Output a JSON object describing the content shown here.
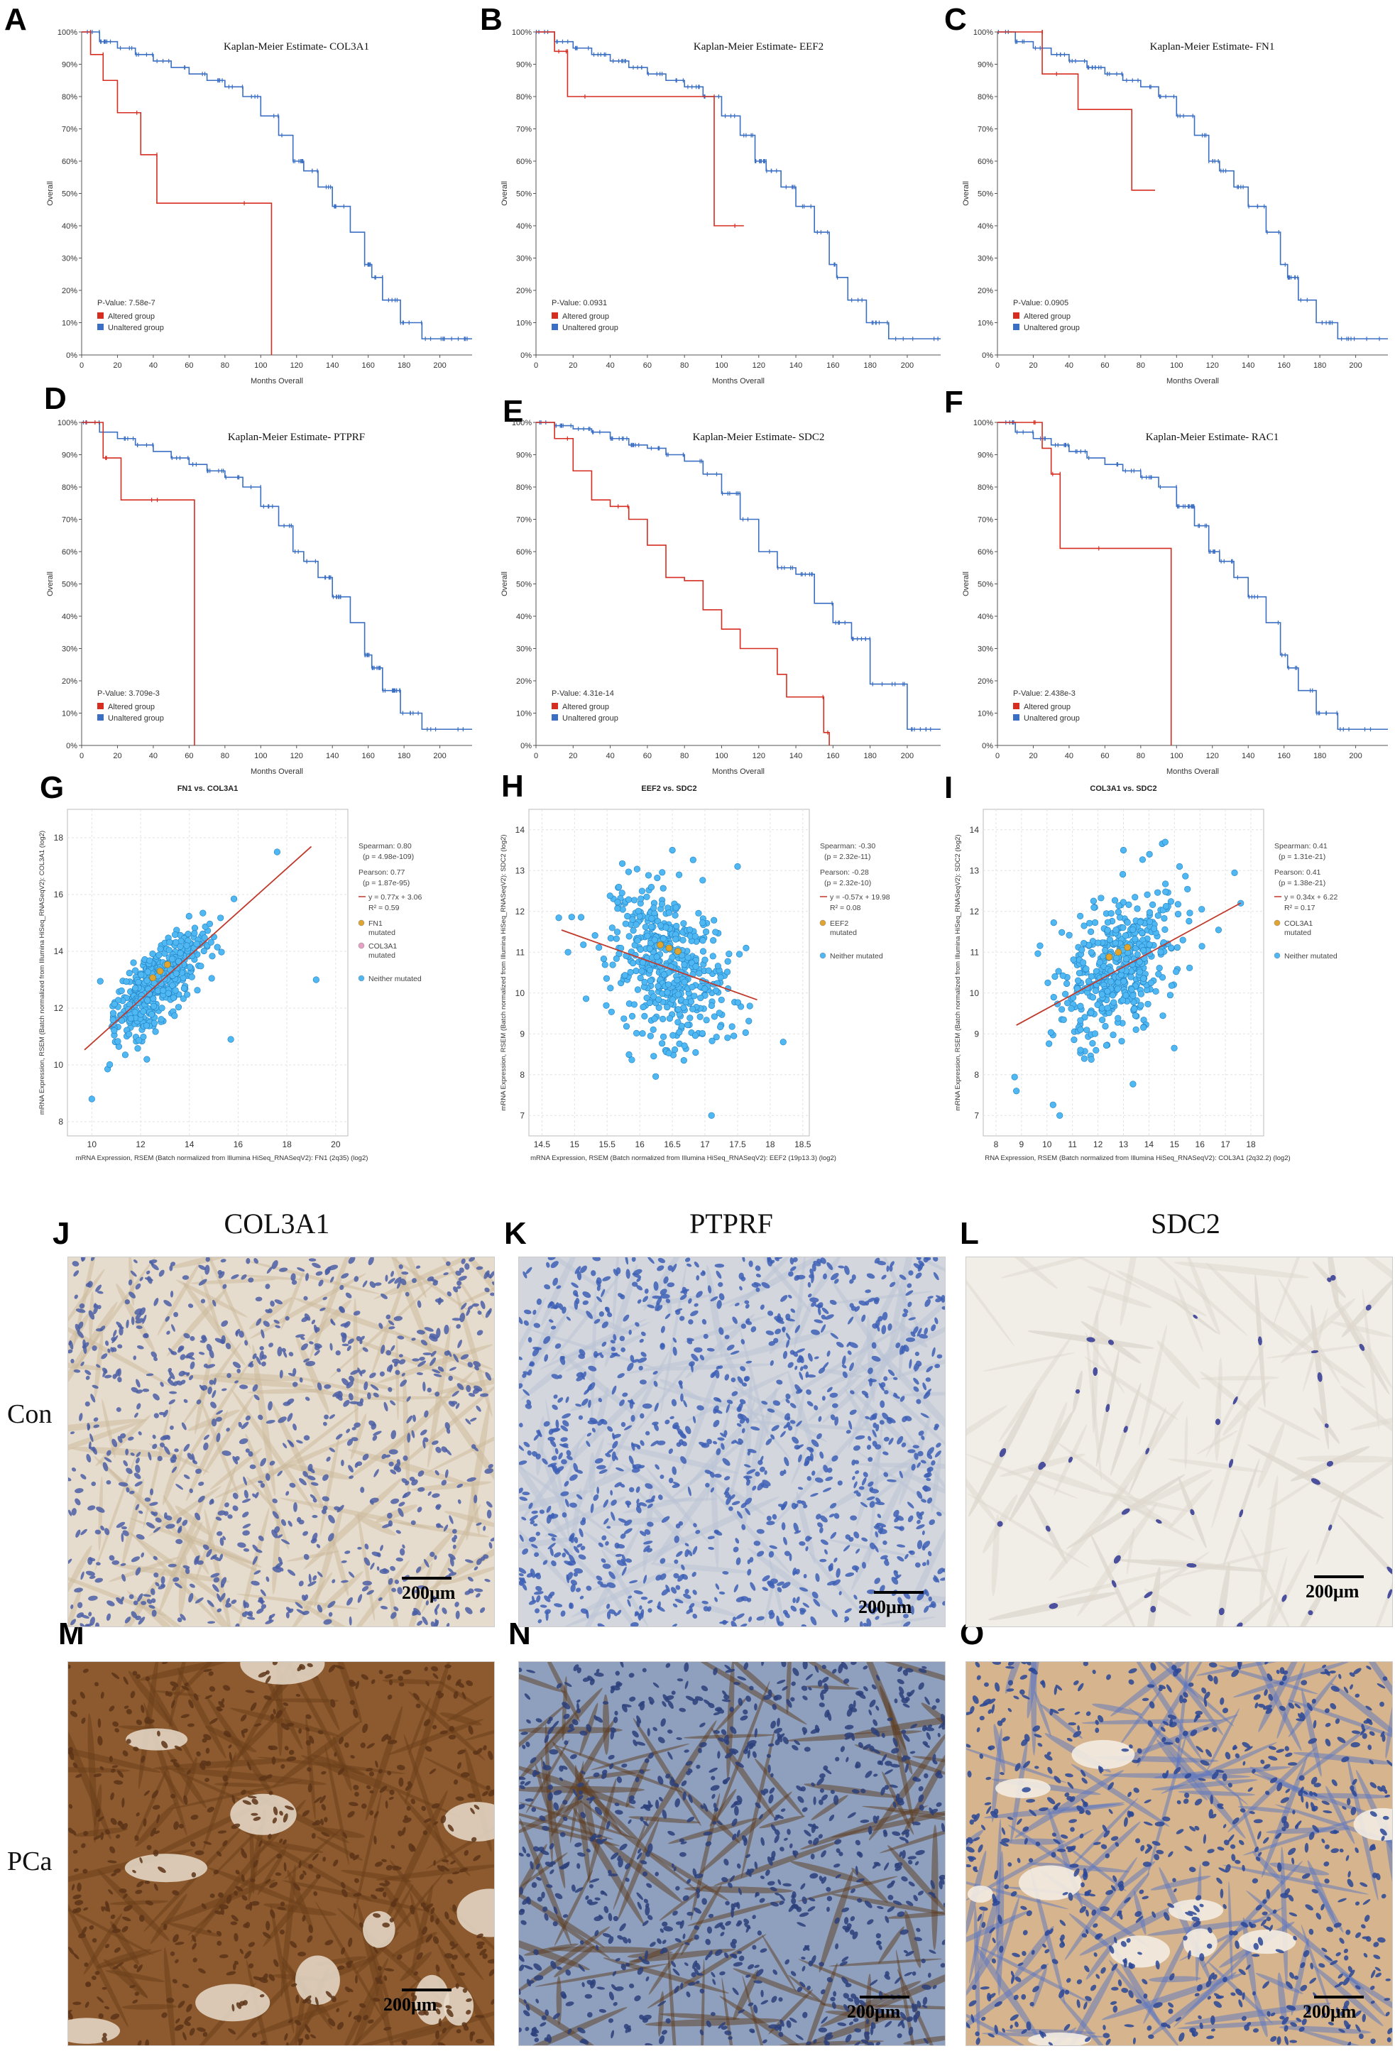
{
  "panel_labels": [
    "A",
    "B",
    "C",
    "D",
    "E",
    "F",
    "G",
    "H",
    "I",
    "J",
    "K",
    "L",
    "M",
    "N",
    "O"
  ],
  "km_common": {
    "ylabel": "Overall",
    "xlabel": "Months Overall",
    "y_ticks": [
      "0%",
      "10%",
      "20%",
      "30%",
      "40%",
      "50%",
      "60%",
      "70%",
      "80%",
      "90%",
      "100%"
    ],
    "x_ticks_a": [
      "0",
      "20",
      "40",
      "60",
      "80",
      "100",
      "120",
      "140",
      "160",
      "180",
      "200"
    ],
    "x_ticks_b": [
      "0",
      "20",
      "40",
      "60",
      "80",
      "100",
      "120",
      "140",
      "160",
      "180",
      "200"
    ],
    "legend_altered": "Altered group",
    "legend_unaltered": "Unaltered group",
    "color_altered": "#d62d20",
    "color_unaltered": "#3a6fc4"
  },
  "chart_data": [
    {
      "type": "line",
      "panel": "A",
      "title": "Kaplan-Meier Estimate- COL3A1",
      "pvalue": "P-Value: 7.58e-7",
      "xlim": [
        0,
        218
      ],
      "ylim": [
        0,
        100
      ],
      "series": [
        {
          "name": "Altered group",
          "x": [
            0,
            5,
            5,
            12,
            12,
            20,
            20,
            33,
            33,
            42,
            42,
            106,
            106
          ],
          "values": [
            100,
            100,
            93,
            93,
            85,
            85,
            75,
            75,
            62,
            62,
            47,
            47,
            0
          ]
        },
        {
          "name": "Unaltered group",
          "x": [
            0,
            10,
            20,
            30,
            40,
            50,
            60,
            70,
            80,
            90,
            100,
            110,
            118,
            124,
            132,
            140,
            150,
            158,
            162,
            168,
            178,
            190,
            200,
            218
          ],
          "values": [
            100,
            97,
            95,
            93,
            91,
            89,
            87,
            85,
            83,
            80,
            74,
            68,
            60,
            57,
            52,
            46,
            38,
            28,
            24,
            17,
            10,
            5,
            5,
            5
          ]
        }
      ]
    },
    {
      "type": "line",
      "panel": "B",
      "title": "Kaplan-Meier Estimate- EEF2",
      "pvalue": "P-Value: 0.0931",
      "xlim": [
        0,
        218
      ],
      "ylim": [
        0,
        100
      ],
      "series": [
        {
          "name": "Altered group",
          "x": [
            0,
            10,
            10,
            17,
            17,
            96,
            96,
            112
          ],
          "values": [
            100,
            100,
            94,
            94,
            80,
            80,
            40,
            40
          ]
        },
        {
          "name": "Unaltered group",
          "x": [
            0,
            10,
            20,
            30,
            40,
            50,
            60,
            70,
            80,
            90,
            100,
            110,
            118,
            124,
            132,
            140,
            150,
            158,
            162,
            168,
            178,
            190,
            200,
            218
          ],
          "values": [
            100,
            97,
            95,
            93,
            91,
            89,
            87,
            85,
            83,
            80,
            74,
            68,
            60,
            57,
            52,
            46,
            38,
            28,
            24,
            17,
            10,
            5,
            5,
            5
          ]
        }
      ]
    },
    {
      "type": "line",
      "panel": "C",
      "title": "Kaplan-Meier Estimate- FN1",
      "pvalue": "P-Value: 0.0905",
      "xlim": [
        0,
        218
      ],
      "ylim": [
        0,
        100
      ],
      "series": [
        {
          "name": "Altered group",
          "x": [
            0,
            25,
            25,
            45,
            45,
            75,
            75,
            88
          ],
          "values": [
            100,
            100,
            87,
            87,
            76,
            76,
            51,
            51
          ]
        },
        {
          "name": "Unaltered group",
          "x": [
            0,
            10,
            20,
            30,
            40,
            50,
            60,
            70,
            80,
            90,
            100,
            110,
            118,
            124,
            132,
            140,
            150,
            158,
            162,
            168,
            178,
            190,
            200,
            218
          ],
          "values": [
            100,
            97,
            95,
            93,
            91,
            89,
            87,
            85,
            83,
            80,
            74,
            68,
            60,
            57,
            52,
            46,
            38,
            28,
            24,
            17,
            10,
            5,
            5,
            5
          ]
        }
      ]
    },
    {
      "type": "line",
      "panel": "D",
      "title": "Kaplan-Meier Estimate- PTPRF",
      "pvalue": "P-Value: 3.709e-3",
      "xlim": [
        0,
        218
      ],
      "ylim": [
        0,
        100
      ],
      "series": [
        {
          "name": "Altered group",
          "x": [
            0,
            12,
            12,
            22,
            22,
            63,
            63
          ],
          "values": [
            100,
            100,
            89,
            89,
            76,
            76,
            0
          ]
        },
        {
          "name": "Unaltered group",
          "x": [
            0,
            10,
            20,
            30,
            40,
            50,
            60,
            70,
            80,
            90,
            100,
            110,
            118,
            124,
            132,
            140,
            150,
            158,
            162,
            168,
            178,
            190,
            200,
            218
          ],
          "values": [
            100,
            97,
            95,
            93,
            91,
            89,
            87,
            85,
            83,
            80,
            74,
            68,
            60,
            57,
            52,
            46,
            38,
            28,
            24,
            17,
            10,
            5,
            5,
            5
          ]
        }
      ]
    },
    {
      "type": "line",
      "panel": "E",
      "title": "Kaplan-Meier Estimate- SDC2",
      "pvalue": "P-Value: 4.31e-14",
      "xlim": [
        0,
        218
      ],
      "ylim": [
        0,
        100
      ],
      "series": [
        {
          "name": "Altered group",
          "x": [
            0,
            10,
            20,
            30,
            40,
            50,
            60,
            70,
            80,
            90,
            100,
            110,
            120,
            130,
            135,
            145,
            155,
            158,
            158
          ],
          "values": [
            100,
            95,
            85,
            76,
            74,
            70,
            62,
            52,
            51,
            42,
            36,
            30,
            30,
            22,
            15,
            15,
            4,
            0,
            0
          ]
        },
        {
          "name": "Unaltered group",
          "x": [
            0,
            10,
            20,
            30,
            40,
            50,
            60,
            70,
            80,
            90,
            100,
            110,
            120,
            130,
            140,
            150,
            160,
            170,
            180,
            200,
            218
          ],
          "values": [
            100,
            99,
            98,
            97,
            95,
            93,
            92,
            90,
            88,
            84,
            78,
            70,
            60,
            55,
            53,
            44,
            38,
            33,
            19,
            5,
            5
          ]
        }
      ]
    },
    {
      "type": "line",
      "panel": "F",
      "title": "Kaplan-Meier Estimate- RAC1",
      "pvalue": "P-Value: 2.438e-3",
      "xlim": [
        0,
        218
      ],
      "ylim": [
        0,
        100
      ],
      "series": [
        {
          "name": "Altered group",
          "x": [
            0,
            25,
            25,
            30,
            30,
            35,
            35,
            97,
            97
          ],
          "values": [
            100,
            100,
            92,
            92,
            84,
            84,
            61,
            61,
            0
          ]
        },
        {
          "name": "Unaltered group",
          "x": [
            0,
            10,
            20,
            30,
            40,
            50,
            60,
            70,
            80,
            90,
            100,
            110,
            118,
            124,
            132,
            140,
            150,
            158,
            162,
            168,
            178,
            190,
            200,
            218
          ],
          "values": [
            100,
            97,
            95,
            93,
            91,
            89,
            87,
            85,
            83,
            80,
            74,
            68,
            60,
            57,
            52,
            46,
            38,
            28,
            24,
            17,
            10,
            5,
            5,
            5
          ]
        }
      ]
    },
    {
      "type": "scatter",
      "panel": "G",
      "title": "FN1 vs. COL3A1",
      "xlabel": "mRNA Expression, RSEM (Batch normalized from Illumina HiSeq_RNASeqV2): FN1 (2q35) (log2)",
      "ylabel": "mRNA Expression, RSEM (Batch normalized from Illumina HiSeq_RNASeqV2): COL3A1 (log2)",
      "xlim": [
        9,
        20.5
      ],
      "ylim": [
        7.5,
        19
      ],
      "x_ticks": [
        "10",
        "12",
        "14",
        "16",
        "18",
        "20"
      ],
      "y_ticks": [
        "8",
        "10",
        "12",
        "14",
        "16",
        "18"
      ],
      "regression": {
        "slope": 0.77,
        "intercept": 3.06,
        "x_range": [
          9.7,
          19
        ]
      },
      "center": [
        12.8,
        12.9
      ],
      "spread": [
        1.0,
        1.0
      ],
      "corr": 0.77,
      "outliers": [
        [
          17.6,
          17.5
        ],
        [
          19.2,
          13.0
        ],
        [
          15.7,
          10.9
        ],
        [
          10.0,
          8.8
        ]
      ],
      "stats": {
        "spearman": "Spearman: 0.80",
        "spearman_p": "(p = 4.98e-109)",
        "pearson": "Pearson: 0.77",
        "pearson_p": "(p = 1.87e-95)",
        "fit": "y = 0.77x + 3.06",
        "r2": "R² = 0.59"
      },
      "legend": [
        "FN1 mutated",
        "COL3A1 mutated",
        "Neither mutated"
      ]
    },
    {
      "type": "scatter",
      "panel": "H",
      "title": "EEF2 vs. SDC2",
      "xlabel": "mRNA Expression, RSEM (Batch normalized from Illumina HiSeq_RNASeqV2): EEF2 (19p13.3) (log2)",
      "ylabel": "mRNA Expression, RSEM (Batch normalized from Illumina HiSeq_RNASeqV2): SDC2 (log2)",
      "xlim": [
        14.3,
        18.6
      ],
      "ylim": [
        6.5,
        14.5
      ],
      "x_ticks": [
        "14.5",
        "15",
        "15.5",
        "16",
        "16.5",
        "17",
        "17.5",
        "18",
        "18.5"
      ],
      "y_ticks": [
        "7",
        "8",
        "9",
        "10",
        "11",
        "12",
        "13",
        "14"
      ],
      "regression": {
        "slope": -0.57,
        "intercept": 19.98,
        "x_range": [
          14.8,
          17.8
        ]
      },
      "center": [
        16.45,
        10.7
      ],
      "spread": [
        0.45,
        0.95
      ],
      "corr": -0.28,
      "outliers": [
        [
          17.1,
          7.0
        ],
        [
          16.5,
          13.5
        ],
        [
          17.5,
          13.1
        ],
        [
          14.9,
          11.0
        ],
        [
          18.2,
          8.8
        ]
      ],
      "stats": {
        "spearman": "Spearman: -0.30",
        "spearman_p": "(p = 2.32e-11)",
        "pearson": "Pearson: -0.28",
        "pearson_p": "(p = 2.32e-10)",
        "fit": "y = -0.57x + 19.98",
        "r2": "R² = 0.08"
      },
      "legend": [
        "EEF2 mutated",
        "Neither mutated"
      ]
    },
    {
      "type": "scatter",
      "panel": "I",
      "title": "COL3A1 vs. SDC2",
      "xlabel": "RNA Expression, RSEM (Batch normalized from Illumina HiSeq_RNASeqV2): COL3A1 (2q32.2) (log2)",
      "ylabel": "mRNA Expression, RSEM (Batch normalized from Illumina HiSeq_RNASeqV2): SDC2 (log2)",
      "xlim": [
        7.5,
        18.5
      ],
      "ylim": [
        6.5,
        14.5
      ],
      "x_ticks": [
        "8",
        "9",
        "10",
        "11",
        "12",
        "13",
        "14",
        "15",
        "16",
        "17",
        "18"
      ],
      "y_ticks": [
        "7",
        "8",
        "9",
        "10",
        "11",
        "12",
        "13",
        "14"
      ],
      "regression": {
        "slope": 0.34,
        "intercept": 6.22,
        "x_range": [
          8.8,
          17.6
        ]
      },
      "center": [
        12.8,
        10.6
      ],
      "spread": [
        1.2,
        0.95
      ],
      "corr": 0.41,
      "outliers": [
        [
          8.8,
          7.6
        ],
        [
          10.5,
          7.0
        ],
        [
          17.6,
          12.2
        ],
        [
          15.2,
          13.1
        ],
        [
          13.0,
          13.5
        ]
      ],
      "stats": {
        "spearman": "Spearman: 0.41",
        "spearman_p": "(p = 1.31e-21)",
        "pearson": "Pearson: 0.41",
        "pearson_p": "(p = 1.38e-21)",
        "fit": "y = 0.34x + 6.22",
        "r2": "R² = 0.17"
      },
      "legend": [
        "COL3A1 mutated",
        "Neither mutated"
      ]
    }
  ],
  "ihc": {
    "col_titles": [
      "COL3A1",
      "PTPRF",
      "SDC2"
    ],
    "row_labels": [
      "Con",
      "PCa"
    ],
    "scale": "200μm"
  }
}
